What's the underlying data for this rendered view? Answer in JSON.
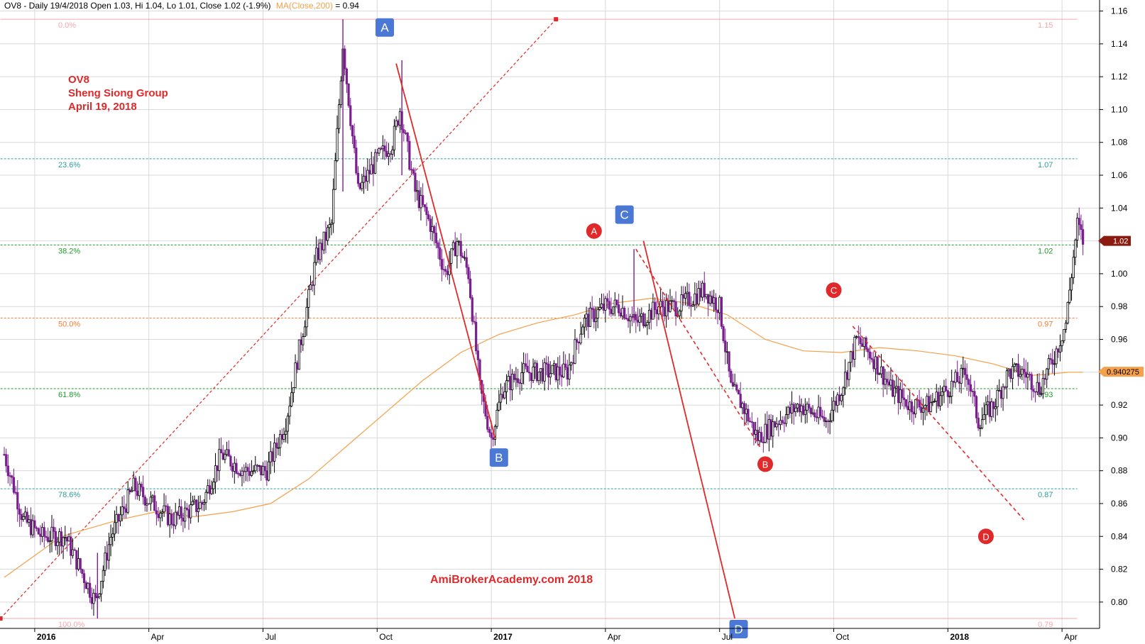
{
  "header": {
    "ticker_info": "OV8 - Daily 19/4/2018 Open 1.03, Hi 1.04, Lo 1.01, Close 1.02 (-1.9%)",
    "ma_label": "MA(Close,200)",
    "ma_value": " = 0.94"
  },
  "annotation": {
    "line1": "OV8",
    "line2": "Sheng Siong Group",
    "line3": "April 19, 2018"
  },
  "watermark": "AmiBrokerAcademy.com 2018",
  "price_tags": {
    "close": "1.02",
    "ma": "0.940275"
  },
  "colors": {
    "candle_up": "#000000",
    "candle_down": "#7a1f8f",
    "ma_line": "#f5a04a",
    "trend_line": "#e0292a",
    "square_marker": "#4a78d4",
    "circle_marker": "#e0292a",
    "grid": "#d9d9d9"
  },
  "chart_data": {
    "type": "candlestick",
    "y_axis": {
      "range": [
        0.79,
        1.165
      ],
      "ticks": [
        "0.80",
        "0.82",
        "0.84",
        "0.86",
        "0.88",
        "0.90",
        "0.92",
        "0.94",
        "0.96",
        "0.98",
        "1.00",
        "1.02",
        "1.04",
        "1.06",
        "1.08",
        "1.10",
        "1.12",
        "1.14",
        "1.16"
      ]
    },
    "x_axis": {
      "range_months": [
        0,
        28.6
      ],
      "ticks": [
        {
          "label": "2016",
          "month": 0.8,
          "year": true
        },
        {
          "label": "Apr",
          "month": 3.8,
          "year": false
        },
        {
          "label": "Jul",
          "month": 6.8,
          "year": false
        },
        {
          "label": "Oct",
          "month": 9.8,
          "year": false
        },
        {
          "label": "2017",
          "month": 12.8,
          "year": true
        },
        {
          "label": "Apr",
          "month": 15.8,
          "year": false
        },
        {
          "label": "Jul",
          "month": 18.8,
          "year": false
        },
        {
          "label": "Oct",
          "month": 21.8,
          "year": false
        },
        {
          "label": "2018",
          "month": 24.8,
          "year": true
        },
        {
          "label": "Apr",
          "month": 27.8,
          "year": false
        }
      ]
    },
    "price_keypoints": [
      [
        0.0,
        0.89
      ],
      [
        0.5,
        0.85
      ],
      [
        1.0,
        0.84
      ],
      [
        1.6,
        0.84
      ],
      [
        2.0,
        0.82
      ],
      [
        2.4,
        0.8
      ],
      [
        2.8,
        0.84
      ],
      [
        3.4,
        0.87
      ],
      [
        4.4,
        0.85
      ],
      [
        5.2,
        0.86
      ],
      [
        5.7,
        0.89
      ],
      [
        6.3,
        0.88
      ],
      [
        6.9,
        0.88
      ],
      [
        7.4,
        0.91
      ],
      [
        7.8,
        0.96
      ],
      [
        8.2,
        1.01
      ],
      [
        8.6,
        1.03
      ],
      [
        8.9,
        1.14
      ],
      [
        9.3,
        1.05
      ],
      [
        9.8,
        1.07
      ],
      [
        10.2,
        1.08
      ],
      [
        10.4,
        1.1
      ],
      [
        10.8,
        1.05
      ],
      [
        11.2,
        1.03
      ],
      [
        11.6,
        1.0
      ],
      [
        11.9,
        1.02
      ],
      [
        12.2,
        1.0
      ],
      [
        12.5,
        0.93
      ],
      [
        12.8,
        0.9
      ],
      [
        13.1,
        0.93
      ],
      [
        13.6,
        0.94
      ],
      [
        14.2,
        0.94
      ],
      [
        14.8,
        0.94
      ],
      [
        15.2,
        0.97
      ],
      [
        15.8,
        0.98
      ],
      [
        16.2,
        0.98
      ],
      [
        16.6,
        0.97
      ],
      [
        17.2,
        0.98
      ],
      [
        17.7,
        0.98
      ],
      [
        18.4,
        0.99
      ],
      [
        18.8,
        0.98
      ],
      [
        19.1,
        0.93
      ],
      [
        19.4,
        0.92
      ],
      [
        19.8,
        0.9
      ],
      [
        20.3,
        0.91
      ],
      [
        20.9,
        0.92
      ],
      [
        21.6,
        0.91
      ],
      [
        22.0,
        0.93
      ],
      [
        22.4,
        0.96
      ],
      [
        22.8,
        0.95
      ],
      [
        23.3,
        0.93
      ],
      [
        23.8,
        0.92
      ],
      [
        24.3,
        0.92
      ],
      [
        24.8,
        0.93
      ],
      [
        25.3,
        0.94
      ],
      [
        25.6,
        0.91
      ],
      [
        26.0,
        0.92
      ],
      [
        26.4,
        0.94
      ],
      [
        26.8,
        0.94
      ],
      [
        27.2,
        0.93
      ],
      [
        27.6,
        0.95
      ],
      [
        27.9,
        0.97
      ],
      [
        28.2,
        1.03
      ],
      [
        28.35,
        1.02
      ]
    ],
    "ma200_keypoints": [
      [
        0.0,
        0.815
      ],
      [
        1.5,
        0.84
      ],
      [
        3.0,
        0.85
      ],
      [
        4.0,
        0.855
      ],
      [
        5.0,
        0.852
      ],
      [
        6.0,
        0.855
      ],
      [
        7.0,
        0.86
      ],
      [
        8.0,
        0.875
      ],
      [
        9.0,
        0.895
      ],
      [
        10.0,
        0.915
      ],
      [
        11.0,
        0.935
      ],
      [
        12.0,
        0.952
      ],
      [
        13.0,
        0.963
      ],
      [
        14.0,
        0.97
      ],
      [
        15.0,
        0.975
      ],
      [
        16.0,
        0.982
      ],
      [
        17.0,
        0.985
      ],
      [
        18.0,
        0.982
      ],
      [
        19.0,
        0.975
      ],
      [
        20.0,
        0.96
      ],
      [
        21.0,
        0.953
      ],
      [
        22.0,
        0.952
      ],
      [
        23.0,
        0.955
      ],
      [
        24.0,
        0.953
      ],
      [
        25.0,
        0.95
      ],
      [
        26.0,
        0.945
      ],
      [
        27.0,
        0.938
      ],
      [
        28.0,
        0.94
      ],
      [
        28.35,
        0.94
      ]
    ],
    "fibonacci": {
      "levels": [
        {
          "pct": "0.0%",
          "price": 1.155,
          "value": "1.15",
          "color": "#f4a7ae"
        },
        {
          "pct": "23.6%",
          "price": 1.07,
          "value": "1.07",
          "color": "#2a9d9a"
        },
        {
          "pct": "38.2%",
          "price": 1.0175,
          "value": "1.02",
          "color": "#1f9a2a"
        },
        {
          "pct": "50.0%",
          "price": 0.973,
          "value": "0.97",
          "color": "#f07c2e"
        },
        {
          "pct": "61.8%",
          "price": 0.93,
          "value": "0.93",
          "color": "#1f9a2a"
        },
        {
          "pct": "78.6%",
          "price": 0.869,
          "value": "0.87",
          "color": "#2a9d9a"
        },
        {
          "pct": "100.0%",
          "price": 0.79,
          "value": "0.79",
          "color": "#f4a7ae"
        }
      ],
      "start": [
        -0.1,
        0.79
      ],
      "end": [
        14.5,
        1.155
      ]
    },
    "trend_lines": [
      {
        "style": "solid",
        "from": [
          10.3,
          1.128
        ],
        "to": [
          12.9,
          0.9
        ]
      },
      {
        "style": "solid",
        "from": [
          16.8,
          1.02
        ],
        "to": [
          19.2,
          0.79
        ]
      },
      {
        "style": "dashed",
        "from": [
          16.6,
          1.015
        ],
        "to": [
          19.9,
          0.893
        ]
      },
      {
        "style": "dashed",
        "from": [
          22.3,
          0.968
        ],
        "to": [
          26.8,
          0.85
        ]
      }
    ],
    "wave_markers": [
      {
        "label": "A",
        "shape": "square",
        "x": 10.0,
        "y": 1.15
      },
      {
        "label": "B",
        "shape": "square",
        "x": 13.0,
        "y": 0.888
      },
      {
        "label": "C",
        "shape": "square",
        "x": 16.3,
        "y": 1.036
      },
      {
        "label": "D",
        "shape": "square",
        "x": 19.3,
        "y": 0.7835
      },
      {
        "label": "A",
        "shape": "circle",
        "x": 15.5,
        "y": 1.026
      },
      {
        "label": "B",
        "shape": "circle",
        "x": 20.0,
        "y": 0.884
      },
      {
        "label": "C",
        "shape": "circle",
        "x": 21.8,
        "y": 0.99
      },
      {
        "label": "D",
        "shape": "circle",
        "x": 25.8,
        "y": 0.84
      }
    ]
  }
}
